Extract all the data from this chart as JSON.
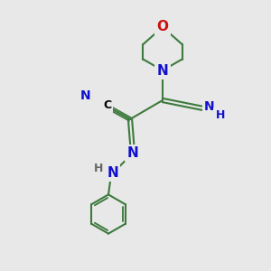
{
  "bg_color": "#e8e8e8",
  "bond_color": "#3d7a3d",
  "N_color": "#1010cc",
  "O_color": "#cc1010",
  "bond_width": 1.5,
  "font_size": 10,
  "xlim": [
    0,
    8
  ],
  "ylim": [
    0,
    10
  ]
}
